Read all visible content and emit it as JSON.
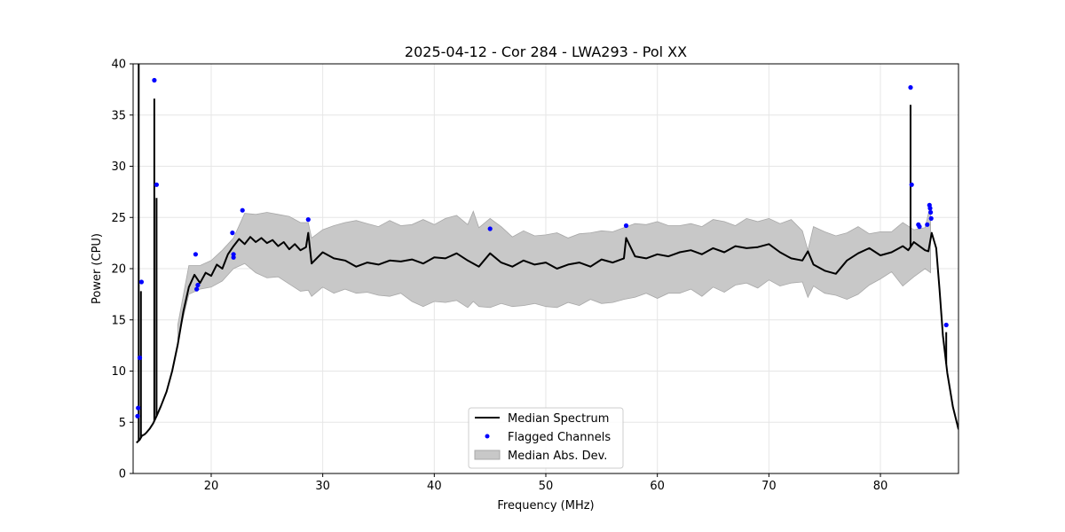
{
  "chart_data": {
    "type": "line",
    "title": "2025-04-12 - Cor 284 - LWA293 - Pol XX",
    "xlabel": "Frequency (MHz)",
    "ylabel": "Power (CPU)",
    "xlim": [
      13,
      87
    ],
    "ylim": [
      0,
      40
    ],
    "xticks": [
      20,
      30,
      40,
      50,
      60,
      70,
      80
    ],
    "xtick_labels": [
      "20",
      "30",
      "40",
      "50",
      "60",
      "70",
      "80"
    ],
    "yticks": [
      0,
      5,
      10,
      15,
      20,
      25,
      30,
      35,
      40
    ],
    "ytick_labels": [
      "0",
      "5",
      "10",
      "15",
      "20",
      "25",
      "30",
      "35",
      "40"
    ],
    "grid": true,
    "legend": {
      "location": "lower-center",
      "entries": [
        {
          "label": "Median Spectrum",
          "kind": "line",
          "color": "#000000"
        },
        {
          "label": "Flagged Channels",
          "kind": "marker",
          "color": "#0000ff"
        },
        {
          "label": "Median Abs. Dev.",
          "kind": "band",
          "color": "#c8c8c8"
        }
      ]
    },
    "series": [
      {
        "name": "Median Spectrum",
        "color": "#000000",
        "x": [
          13.3,
          13.6,
          13.8,
          14.0,
          14.2,
          14.5,
          14.8,
          15.1,
          15.5,
          16.0,
          16.5,
          17.0,
          17.5,
          18.0,
          18.5,
          19.0,
          19.5,
          20.0,
          20.5,
          21.0,
          21.5,
          22.0,
          22.5,
          23.0,
          23.5,
          24.0,
          24.5,
          25.0,
          25.5,
          26.0,
          26.5,
          27.0,
          27.5,
          28.0,
          28.5,
          28.7,
          29.0,
          30.0,
          31.0,
          32.0,
          33.0,
          34.0,
          35.0,
          36.0,
          37.0,
          38.0,
          39.0,
          40.0,
          41.0,
          42.0,
          43.0,
          44.0,
          45.0,
          46.0,
          47.0,
          48.0,
          49.0,
          50.0,
          51.0,
          52.0,
          53.0,
          54.0,
          55.0,
          56.0,
          57.0,
          57.2,
          58.0,
          59.0,
          60.0,
          61.0,
          62.0,
          63.0,
          64.0,
          65.0,
          66.0,
          67.0,
          68.0,
          69.0,
          70.0,
          71.0,
          72.0,
          73.0,
          73.5,
          74.0,
          75.0,
          76.0,
          77.0,
          78.0,
          79.0,
          80.0,
          81.0,
          82.0,
          82.5,
          83.0,
          83.5,
          84.0,
          84.3,
          84.6,
          85.0,
          85.3,
          85.6,
          86.0,
          86.5,
          87.0
        ],
        "y": [
          3.0,
          3.3,
          3.7,
          3.8,
          4.0,
          4.4,
          4.9,
          5.6,
          6.6,
          8.0,
          10.0,
          12.6,
          15.8,
          18.2,
          19.4,
          18.6,
          19.6,
          19.3,
          20.4,
          20.0,
          21.4,
          22.2,
          22.9,
          22.4,
          23.1,
          22.6,
          23.0,
          22.5,
          22.8,
          22.2,
          22.6,
          21.9,
          22.4,
          21.8,
          22.1,
          23.5,
          20.5,
          21.6,
          21.0,
          20.8,
          20.2,
          20.6,
          20.4,
          20.8,
          20.7,
          20.9,
          20.5,
          21.1,
          21.0,
          21.5,
          20.8,
          20.2,
          21.5,
          20.6,
          20.2,
          20.8,
          20.4,
          20.6,
          20.0,
          20.4,
          20.6,
          20.2,
          20.9,
          20.6,
          21.0,
          23.0,
          21.2,
          21.0,
          21.4,
          21.2,
          21.6,
          21.8,
          21.4,
          22.0,
          21.6,
          22.2,
          22.0,
          22.1,
          22.4,
          21.6,
          21.0,
          20.8,
          21.7,
          20.4,
          19.8,
          19.5,
          20.8,
          21.5,
          22.0,
          21.3,
          21.6,
          22.2,
          21.8,
          22.6,
          22.2,
          21.8,
          21.7,
          23.5,
          22.0,
          18.0,
          13.5,
          9.8,
          6.5,
          4.3
        ],
        "spikes": [
          {
            "x": 13.5,
            "y": 40.0
          },
          {
            "x": 13.7,
            "y": 17.8
          },
          {
            "x": 14.9,
            "y": 36.6
          },
          {
            "x": 15.1,
            "y": 26.9
          },
          {
            "x": 82.7,
            "y": 36.0
          },
          {
            "x": 85.9,
            "y": 13.8
          }
        ]
      },
      {
        "name": "Flagged Channels",
        "color": "#0000ff",
        "x": [
          13.4,
          13.45,
          13.6,
          13.75,
          14.9,
          15.1,
          18.6,
          18.7,
          18.8,
          21.9,
          22.0,
          22.0,
          22.8,
          28.7,
          45.0,
          57.2,
          82.7,
          82.8,
          83.4,
          83.5,
          84.2,
          84.4,
          84.45,
          84.5,
          84.55,
          85.9
        ],
        "y": [
          5.6,
          6.4,
          11.3,
          18.7,
          38.4,
          28.2,
          21.4,
          18.0,
          18.4,
          23.5,
          21.1,
          21.4,
          25.7,
          24.8,
          23.9,
          24.2,
          37.7,
          28.2,
          24.3,
          24.1,
          24.3,
          26.2,
          25.9,
          25.5,
          24.9,
          14.5
        ]
      },
      {
        "name": "Median Abs. Dev.",
        "color": "#c8c8c8",
        "x": [
          17.0,
          18.0,
          19.0,
          20.0,
          21.0,
          22.0,
          23.0,
          24.0,
          25.0,
          26.0,
          27.0,
          28.0,
          28.7,
          29.0,
          30.0,
          31.0,
          32.0,
          33.0,
          34.0,
          35.0,
          36.0,
          37.0,
          38.0,
          39.0,
          40.0,
          41.0,
          42.0,
          43.0,
          43.5,
          44.0,
          45.0,
          46.0,
          47.0,
          48.0,
          49.0,
          50.0,
          51.0,
          52.0,
          53.0,
          54.0,
          55.0,
          56.0,
          57.0,
          58.0,
          59.0,
          60.0,
          61.0,
          62.0,
          63.0,
          64.0,
          65.0,
          66.0,
          67.0,
          68.0,
          69.0,
          70.0,
          71.0,
          72.0,
          73.0,
          73.5,
          74.0,
          75.0,
          76.0,
          77.0,
          78.0,
          79.0,
          80.0,
          81.0,
          82.0,
          83.0,
          84.0,
          84.5
        ],
        "upper": [
          14.5,
          20.3,
          20.3,
          20.8,
          21.8,
          23.0,
          25.4,
          25.3,
          25.5,
          25.3,
          25.1,
          24.5,
          24.5,
          23.0,
          23.8,
          24.2,
          24.5,
          24.7,
          24.4,
          24.1,
          24.7,
          24.2,
          24.3,
          24.8,
          24.3,
          24.9,
          25.2,
          24.3,
          25.6,
          24.0,
          24.9,
          24.1,
          23.1,
          23.7,
          23.2,
          23.3,
          23.5,
          23.0,
          23.4,
          23.5,
          23.7,
          23.6,
          24.0,
          24.4,
          24.3,
          24.6,
          24.2,
          24.2,
          24.4,
          24.1,
          24.8,
          24.6,
          24.2,
          24.9,
          24.6,
          24.9,
          24.4,
          24.8,
          23.7,
          21.8,
          24.1,
          23.6,
          23.2,
          23.5,
          24.1,
          23.4,
          23.6,
          23.6,
          24.5,
          23.8,
          24.0,
          26.3
        ],
        "lower": [
          13.0,
          17.5,
          18.0,
          18.2,
          18.8,
          20.0,
          20.5,
          19.6,
          19.1,
          19.2,
          18.5,
          17.8,
          17.9,
          17.3,
          18.2,
          17.6,
          18.0,
          17.6,
          17.7,
          17.4,
          17.3,
          17.6,
          16.8,
          16.3,
          16.8,
          16.7,
          16.9,
          16.2,
          16.8,
          16.3,
          16.2,
          16.6,
          16.3,
          16.4,
          16.6,
          16.3,
          16.2,
          16.7,
          16.4,
          17.0,
          16.6,
          16.7,
          17.0,
          17.2,
          17.6,
          17.1,
          17.6,
          17.6,
          18.0,
          17.3,
          18.2,
          17.7,
          18.4,
          18.6,
          18.1,
          18.9,
          18.3,
          18.6,
          18.7,
          17.2,
          18.3,
          17.6,
          17.4,
          17.0,
          17.5,
          18.4,
          19.0,
          19.7,
          18.3,
          19.2,
          20.0,
          19.6
        ]
      }
    ]
  }
}
